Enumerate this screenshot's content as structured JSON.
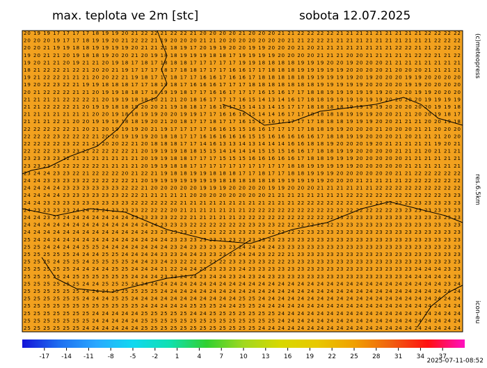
{
  "header": {
    "title": "max. teplota ve 2m [stc]",
    "date": "sobota 12.07.2025"
  },
  "side_labels": {
    "copyright": "(c)meteopress",
    "resolution": "res.6.5km",
    "model": "icon-eu"
  },
  "timestamp": "2025-07-11-08:52",
  "map": {
    "background": "#f2a11e",
    "rows": [
      "20 19 19 17 17 17 17 18 19 19 20 21 22 22 21 22 22 21 20 20 20 20 21 20 20 20 21 21 22 22 22 22 21 21 21 21 21 21 21 21 21 22 22 22 22",
      "20 20 20 19 17 17 18 19 19 20 21 22 22 21 19 20 20 20 21 21 20 20 20 20 20 20 20 21 21 22 22 21 21 21 21 21 21 21 21 21 21 21 22 22 22",
      "20 20 21 19 19 18 18 19 19 19 19 20 21 21 21 18 19 17 20 19 19 20 20 19 19 20 20 20 21 20 21 21 21 21 21 21 21 21 22 22 21 21 22 22 22",
      "19 20 21 21 20 19 18 18 19 20 20 21 20 19 18 18 19 19 19 18 18 17 19 19 19 19 20 20 20 20 21 21 21 20 20 21 21 21 21 21 22 22 21 21 22",
      "19 20 21 21 20 19 21 21 20 19 18 17 18 17 18 18 18 17 17 17 17 17 19 19 18 18 18 18 19 19 19 20 20 19 20 20 20 21 21 21 21 21 21 21 21",
      "18 21 22 22 21 22 21 20 20 21 19 17 17 17 18 17 18 18 17 17 17 16 16 17 17 18 18 18 19 19 19 19 19 20 20 20 20 21 20 20 20 21 21 21 21",
      "19 21 22 22 21 21 21 20 20 22 21 19 18 17 17 18 17 17 16 16 17 16 16 17 18 18 18 18 18 19 19 19 19 19 20 19 20 20 20 19 19 20 20 20 20",
      "19 20 22 23 22 21 19 19 18 18 18 17 17 18 19 18 17 16 16 16 17 17 17 18 18 18 18 18 18 18 19 19 19 19 19 20 20 20 20 19 19 20 20 20 20",
      "20 21 22 22 22 21 21 20 19 19 18 18 17 18 19 19 18 17 17 16 16 17 17 17 16 15 16 17 17 18 18 19 19 19 19 19 19 20 20 20 19 19 20 20 20",
      "21 21 21 21 22 22 22 21 20 19 19 18 18 20 21 21 20 18 16 17 17 17 16 15 14 13 14 16 17 18 18 19 19 19 19 19 19 20 20 20 20 19 19 19 19",
      "21 21 22 22 22 21 20 19 19 18 18 19 20 20 21 19 18 18 17 16 16 17 15 14 13 14 15 17 17 18 18 18 18 19 19 19 19 20 20 20 20 20 19 19 18",
      "21 21 21 21 21 21 21 20 20 19 18 18 19 19 20 20 19 19 17 17 16 16 16 15 14 14 16 17 17 18 18 18 18 19 19 19 20 20 21 21 20 20 19 18 17",
      "21 21 21 22 21 20 20 19 19 19 18 18 19 20 21 20 18 17 17 18 17 17 16 15 15 16 17 17 17 17 18 18 18 19 19 19 20 20 21 21 21 20 20 19 18",
      "22 22 22 22 22 21 20 21 20 19 19 19 20 21 19 17 17 17 17 16 16 15 15 16 16 17 17 17 17 18 18 19 19 20 20 20 21 20 20 20 21 21 20 20 20",
      "22 22 22 23 22 22 22 21 20 20 19 19 19 20 18 18 17 17 16 16 16 16 16 15 15 16 16 16 16 16 17 18 18 19 19 20 20 20 21 20 21 21 21 20 20",
      "22 22 22 22 23 22 21 21 20 20 22 21 20 18 18 18 17 17 14 16 13 13 14 13 14 14 14 16 16 18 18 19 20 20 20 19 20 21 21 21 21 21 19 20 21",
      "22 22 22 23 23 23 22 22 22 22 22 21 20 19 19 19 18 18 15 15 14 14 14 14 15 15 15 16 16 17 18 18 19 19 20 20 20 20 21 21 21 20 21 21 21",
      "23 23 23 23 22 21 21 21 21 21 21 21 20 19 19 18 18 17 17 17 15 15 15 16 16 16 16 16 17 18 18 19 19 19 20 20 20 20 20 21 21 21 21 21 21",
      "23 23 23 23 22 22 22 22 21 21 21 21 20 19 19 18 18 17 17 17 17 17 17 17 17 17 17 18 18 19 19 19 19 19 20 20 20 20 20 21 21 21 21 21 21",
      "23 24 24 23 23 22 21 22 22 22 20 21 22 21 19 18 18 19 19 18 18 18 17 17 18 17 17 18 18 19 19 19 20 20 20 20 20 20 21 21 22 22 22 22 22",
      "24 24 23 23 23 23 22 22 22 22 22 21 20 19 19 19 19 19 19 19 18 18 18 18 18 18 19 19 19 19 19 20 20 20 21 21 21 21 21 22 22 22 22 22 22",
      "24 24 24 24 23 23 23 23 23 23 22 22 21 20 20 20 20 20 19 19 19 20 20 20 20 19 19 20 20 20 21 21 21 21 21 21 22 22 22 22 22 22 22 22 22",
      "24 24 24 24 23 23 23 23 23 23 22 22 21 21 21 21 21 20 20 20 20 20 20 20 20 21 21 21 21 21 21 21 21 22 22 22 22 22 22 22 22 22 22 23 23",
      "24 24 23 23 23 23 23 23 23 23 23 22 22 22 22 22 21 21 21 21 21 21 21 21 21 21 21 21 22 22 22 22 22 22 22 22 22 22 22 22 23 23 23 23 23",
      "24 23 23 23 23 24 24 23 24 23 23 23 22 22 22 20 21 21 21 21 21 21 21 22 22 22 22 22 22 22 22 22 22 22 22 22 22 22 23 23 23 23 23 23 23",
      "24 24 23 23 24 24 24 24 24 24 24 23 23 23 23 22 22 21 21 21 21 21 22 22 22 22 22 22 22 22 22 22 23 23 23 23 23 23 23 23 23 23 23 23 23",
      "24 24 24 24 24 24 24 24 24 24 24 24 24 24 23 23 23 22 22 22 22 22 22 23 23 23 22 22 22 22 22 22 23 23 23 23 23 23 23 23 23 23 23 23 23",
      "24 24 24 24 24 24 24 24 24 24 24 24 24 23 23 23 23 23 22 22 22 23 23 23 23 22 22 22 22 23 23 23 23 23 23 23 23 23 23 23 23 23 23 23 23",
      "25 24 24 24 24 24 24 24 24 24 24 24 24 24 24 23 23 23 23 23 23 23 23 23 23 23 23 23 23 23 23 23 23 23 23 23 23 23 23 23 23 23 23 23 23",
      "25 25 24 24 24 24 25 25 24 24 24 24 24 24 24 23 24 23 23 23 23 23 24 24 24 24 23 23 23 23 23 23 23 23 23 23 23 23 23 23 23 23 23 23 23",
      "25 25 25 25 25 24 24 24 25 25 24 24 24 24 23 23 24 24 23 23 23 23 24 24 23 22 22 21 23 23 23 23 23 23 23 23 23 23 23 23 23 23 23 23 23",
      "25 25 25 24 25 25 24 25 25 25 25 24 24 23 24 23 22 22 22 22 22 23 23 23 23 22 22 23 23 23 23 23 23 23 23 23 23 23 23 23 23 23 23 23 23",
      "25 25 25 25 25 24 24 24 24 25 25 24 24 24 21 22 24 24 23 23 23 23 24 23 23 23 23 23 23 23 23 23 23 23 23 23 23 23 23 23 24 24 24 23 23",
      "25 25 25 25 24 25 25 25 25 25 25 24 24 24 23 23 24 24 23 24 24 23 24 23 24 23 23 23 23 23 23 23 23 23 23 23 23 23 23 24 24 24 24 24 23",
      "25 25 25 25 25 25 24 24 25 25 25 24 24 24 24 24 24 24 24 24 24 24 24 24 24 24 24 24 24 24 24 24 24 24 24 24 24 24 24 24 24 24 24 23 24",
      "25 25 25 25 25 25 24 24 24 25 25 25 25 25 24 24 24 24 24 24 24 24 24 24 24 24 24 24 24 24 24 24 24 24 24 24 24 24 24 24 24 24 24 24 24",
      "25 25 25 25 25 25 24 24 24 25 25 24 24 24 24 24 24 24 24 24 24 24 25 25 24 24 24 24 24 24 24 24 24 24 24 24 24 24 24 24 24 24 24 24 24",
      "25 25 25 25 25 25 25 25 25 25 25 25 24 24 24 24 24 25 25 25 24 24 25 25 24 24 24 24 24 24 24 24 24 24 24 24 24 24 24 24 24 24 24 24 24",
      "25 25 25 25 25 25 25 24 24 24 24 24 25 25 25 25 25 24 24 25 25 25 25 25 25 25 24 24 24 24 24 24 24 24 24 24 24 24 24 24 24 24 24 24 24",
      "25 25 25 25 25 25 25 24 24 24 24 24 25 25 25 25 25 25 25 25 25 25 25 25 25 25 24 24 24 24 24 24 24 24 24 24 24 24 24 24 24 24 24 24 24",
      "25 25 25 25 25 25 24 24 24 24 24 24 25 25 25 25 25 25 25 25 25 25 25 25 24 24 24 24 24 24 24 24 24 24 24 24 24 24 24 24 24 24 24 24 24"
    ]
  },
  "colorbar": {
    "xlim": [
      -20,
      40
    ],
    "ticks": [
      -17,
      -14,
      -11,
      -8,
      -5,
      -2,
      1,
      4,
      7,
      10,
      13,
      16,
      19,
      22,
      25,
      28,
      31,
      34,
      37
    ],
    "colors": [
      "#1414d8",
      "#1e6ef0",
      "#2aa8ff",
      "#10d8f0",
      "#10e0b0",
      "#30d030",
      "#a0d820",
      "#d8d800",
      "#e8c800",
      "#f0a000",
      "#f06010",
      "#ff1010",
      "#ff10c0"
    ]
  }
}
